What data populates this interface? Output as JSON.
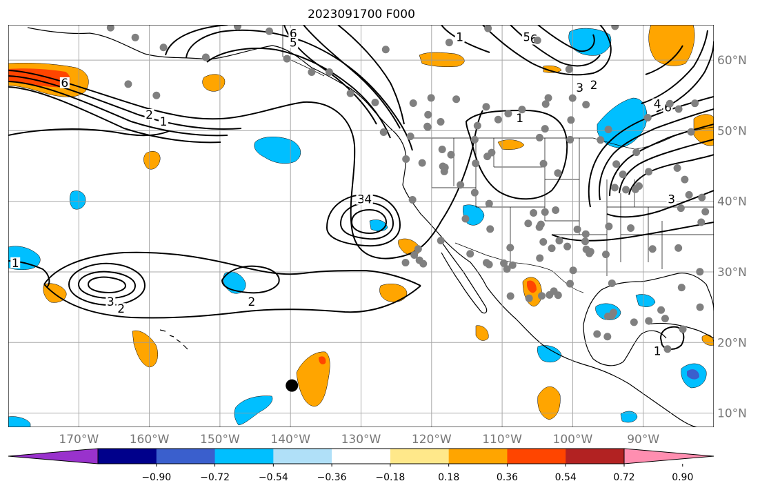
{
  "title": "2023091700 F000",
  "map": {
    "lon_ticks": [
      "170°W",
      "160°W",
      "150°W",
      "140°W",
      "130°W",
      "120°W",
      "110°W",
      "100°W",
      "90°W"
    ],
    "lat_ticks": [
      "60°N",
      "50°N",
      "40°N",
      "30°N",
      "20°N",
      "10°N"
    ],
    "lon_range": [
      -180,
      -80
    ],
    "lat_range": [
      8,
      65
    ],
    "projection": "plate-carree",
    "grid": true,
    "land_color": "#ffffff",
    "ocean_color": "#ffffff"
  },
  "colorbar": {
    "orientation": "horizontal",
    "extend": "both",
    "tick_labels": [
      "−0.90",
      "−0.72",
      "−0.54",
      "−0.36",
      "−0.18",
      "0.18",
      "0.36",
      "0.54",
      "0.72",
      "0.90"
    ],
    "levels": [
      -0.9,
      -0.72,
      -0.54,
      -0.36,
      -0.18,
      0.18,
      0.36,
      0.54,
      0.72,
      0.9
    ],
    "colors": [
      "#9932cc",
      "#00008b",
      "#3a5fcd",
      "#00bfff",
      "#b0e0f8",
      "#ffffff",
      "#ffe88a",
      "#ffa500",
      "#ff4500",
      "#b22222",
      "#ff8eb0"
    ]
  },
  "contours": {
    "labels": [
      {
        "text": "6",
        "lon": -172,
        "lat": 56.5
      },
      {
        "text": "2",
        "lon": -160,
        "lat": 52
      },
      {
        "text": "1",
        "lon": -158,
        "lat": 51
      },
      {
        "text": "1",
        "lon": -179,
        "lat": 31
      },
      {
        "text": "3",
        "lon": -165.5,
        "lat": 25.5
      },
      {
        "text": "2",
        "lon": -164,
        "lat": 24.5
      },
      {
        "text": "2",
        "lon": -145.5,
        "lat": 25.5
      },
      {
        "text": "3",
        "lon": -130,
        "lat": 40
      },
      {
        "text": "4",
        "lon": -129,
        "lat": 40
      },
      {
        "text": "6",
        "lon": -139.6,
        "lat": 63.5
      },
      {
        "text": "5",
        "lon": -139.6,
        "lat": 62.2
      },
      {
        "text": "1",
        "lon": -116,
        "lat": 63
      },
      {
        "text": "5",
        "lon": -106.5,
        "lat": 63
      },
      {
        "text": "6",
        "lon": -105.5,
        "lat": 62.7
      },
      {
        "text": "3",
        "lon": -99,
        "lat": 55.8
      },
      {
        "text": "2",
        "lon": -97,
        "lat": 56.2
      },
      {
        "text": "1",
        "lon": -107.5,
        "lat": 51.5
      },
      {
        "text": "4",
        "lon": -88,
        "lat": 53.5
      },
      {
        "text": "6",
        "lon": -86.5,
        "lat": 53
      },
      {
        "text": "3",
        "lon": -86,
        "lat": 40
      },
      {
        "text": "1",
        "lon": -88,
        "lat": 18.5
      }
    ]
  },
  "storm_center": {
    "lon": -139.8,
    "lat": 13.9
  },
  "station_count": 140
}
